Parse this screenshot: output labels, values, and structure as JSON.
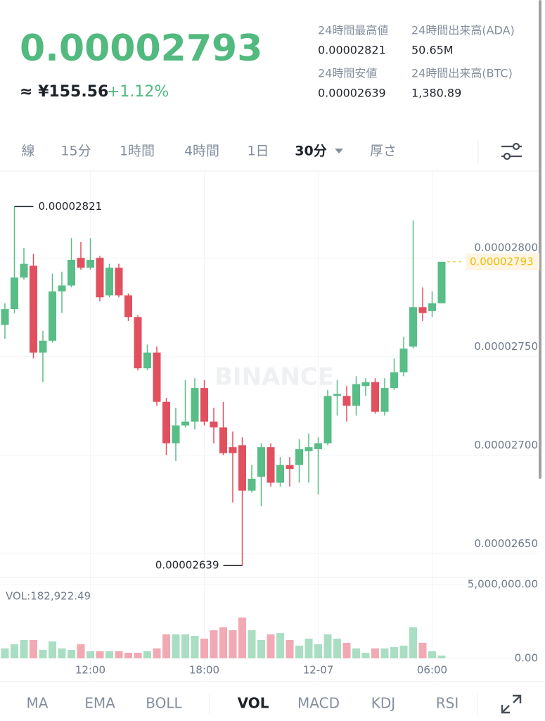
{
  "header": {
    "price": "0.00002793",
    "approx": "≈ ¥155.56",
    "change": "+1.12%",
    "stats": [
      {
        "label": "24時間最高値",
        "value": "0.00002821"
      },
      {
        "label": "24時間出来高(ADA)",
        "value": "50.65M"
      },
      {
        "label": "24時間安値",
        "value": "0.00002639"
      },
      {
        "label": "24時間出来高(BTC)",
        "value": "1,380.89"
      }
    ]
  },
  "intervals": [
    "線",
    "15分",
    "1時間",
    "4時間",
    "1日",
    "30分",
    "厚さ"
  ],
  "selected_interval": 5,
  "indicators": [
    "MA",
    "EMA",
    "BOLL",
    "VOL",
    "MACD",
    "KDJ",
    "RSI"
  ],
  "selected_indicator": 3,
  "chart_data": {
    "type": "candlestick",
    "watermark": "BINANCE",
    "up_color": "#58bd86",
    "down_color": "#e0505e",
    "volume_up_color": "#a9dec3",
    "volume_down_color": "#f1a9b3",
    "open": [
      2.761e-05,
      2.769e-05,
      2.785e-05,
      2.791e-05,
      2.747e-05,
      2.753e-05,
      2.778e-05,
      2.781e-05,
      2.795e-05,
      2.79e-05,
      2.795e-05,
      2.776e-05,
      2.79e-05,
      2.776e-05,
      2.765e-05,
      2.739e-05,
      2.747e-05,
      2.722e-05,
      2.701e-05,
      2.71e-05,
      2.712e-05,
      2.729e-05,
      2.712e-05,
      2.709e-05,
      2.699e-05,
      2.7e-05,
      2.677e-05,
      2.684e-05,
      2.699e-05,
      2.681e-05,
      2.69e-05,
      2.69e-05,
      2.697e-05,
      2.698e-05,
      2.701e-05,
      2.725e-05,
      2.725e-05,
      2.72e-05,
      2.73e-05,
      2.732e-05,
      2.717e-05,
      2.729e-05,
      2.737e-05,
      2.75e-05,
      2.77e-05,
      2.768e-05,
      2.772e-05
    ],
    "high": [
      2.772e-05,
      2.821e-05,
      2.8e-05,
      2.797e-05,
      2.758e-05,
      2.787e-05,
      2.788e-05,
      2.805e-05,
      2.803e-05,
      2.805e-05,
      2.796e-05,
      2.792e-05,
      2.792e-05,
      2.777e-05,
      2.766e-05,
      2.751e-05,
      2.75e-05,
      2.724e-05,
      2.719e-05,
      2.733e-05,
      2.734e-05,
      2.733e-05,
      2.719e-05,
      2.722e-05,
      2.707e-05,
      2.704e-05,
      2.69e-05,
      2.701e-05,
      2.701e-05,
      2.694e-05,
      2.694e-05,
      2.703e-05,
      2.706e-05,
      2.704e-05,
      2.728e-05,
      2.733e-05,
      2.73e-05,
      2.735e-05,
      2.734e-05,
      2.734e-05,
      2.734e-05,
      2.744e-05,
      2.755e-05,
      2.814e-05,
      2.78e-05,
      2.778e-05,
      2.793e-05
    ],
    "low": [
      2.754e-05,
      2.767e-05,
      2.784e-05,
      2.744e-05,
      2.732e-05,
      2.752e-05,
      2.767e-05,
      2.78e-05,
      2.789e-05,
      2.789e-05,
      2.773e-05,
      2.775e-05,
      2.775e-05,
      2.763e-05,
      2.738e-05,
      2.738e-05,
      2.72e-05,
      2.695e-05,
      2.692e-05,
      2.709e-05,
      2.708e-05,
      2.71e-05,
      2.701e-05,
      2.695e-05,
      2.671e-05,
      2.639e-05,
      2.676e-05,
      2.669e-05,
      2.679e-05,
      2.679e-05,
      2.679e-05,
      2.681e-05,
      2.681e-05,
      2.675e-05,
      2.7e-05,
      2.715e-05,
      2.712e-05,
      2.715e-05,
      2.725e-05,
      2.716e-05,
      2.715e-05,
      2.728e-05,
      2.735e-05,
      2.749e-05,
      2.763e-05,
      2.765e-05,
      2.772e-05
    ],
    "close": [
      2.769e-05,
      2.785e-05,
      2.792e-05,
      2.747e-05,
      2.753e-05,
      2.778e-05,
      2.781e-05,
      2.794e-05,
      2.79e-05,
      2.794e-05,
      2.775e-05,
      2.79e-05,
      2.776e-05,
      2.765e-05,
      2.739e-05,
      2.747e-05,
      2.722e-05,
      2.701e-05,
      2.71e-05,
      2.712e-05,
      2.729e-05,
      2.712e-05,
      2.709e-05,
      2.696e-05,
      2.696e-05,
      2.677e-05,
      2.683e-05,
      2.699e-05,
      2.681e-05,
      2.69e-05,
      2.688e-05,
      2.698e-05,
      2.699e-05,
      2.701e-05,
      2.725e-05,
      2.726e-05,
      2.72e-05,
      2.731e-05,
      2.732e-05,
      2.717e-05,
      2.729e-05,
      2.737e-05,
      2.749e-05,
      2.77e-05,
      2.767e-05,
      2.772e-05,
      2.793e-05
    ],
    "volume": [
      670000,
      950000,
      1240000,
      1240000,
      570000,
      1140000,
      670000,
      570000,
      950000,
      480000,
      480000,
      480000,
      480000,
      380000,
      380000,
      480000,
      670000,
      1620000,
      1620000,
      1620000,
      1520000,
      1330000,
      1900000,
      2100000,
      1900000,
      2760000,
      1900000,
      1240000,
      1620000,
      1710000,
      1240000,
      860000,
      1330000,
      950000,
      1620000,
      1330000,
      1050000,
      670000,
      380000,
      670000,
      670000,
      760000,
      860000,
      2100000,
      1050000,
      480000,
      182922.49
    ],
    "volume_title": "VOL:182,922.49",
    "ylim": [
      2.839e-05,
      2.633e-05
    ],
    "yticks": [
      {
        "value": 2.8e-05,
        "label": "0.00002800"
      },
      {
        "value": 2.75e-05,
        "label": "0.00002750"
      },
      {
        "value": 2.7e-05,
        "label": "0.00002700"
      },
      {
        "value": 2.65e-05,
        "label": "0.00002650"
      }
    ],
    "volume_lim": [
      0,
      5000000
    ],
    "volume_ticks": [
      {
        "value": 0,
        "label": "0.00"
      },
      {
        "value": 5000000,
        "label": "5,000,000.00"
      }
    ],
    "xticks": [
      {
        "value": 9,
        "label": "12:00"
      },
      {
        "value": 21,
        "label": "18:00"
      },
      {
        "value": 33,
        "label": "12-07"
      },
      {
        "value": 45,
        "label": "06:00"
      }
    ],
    "grid": true
  }
}
